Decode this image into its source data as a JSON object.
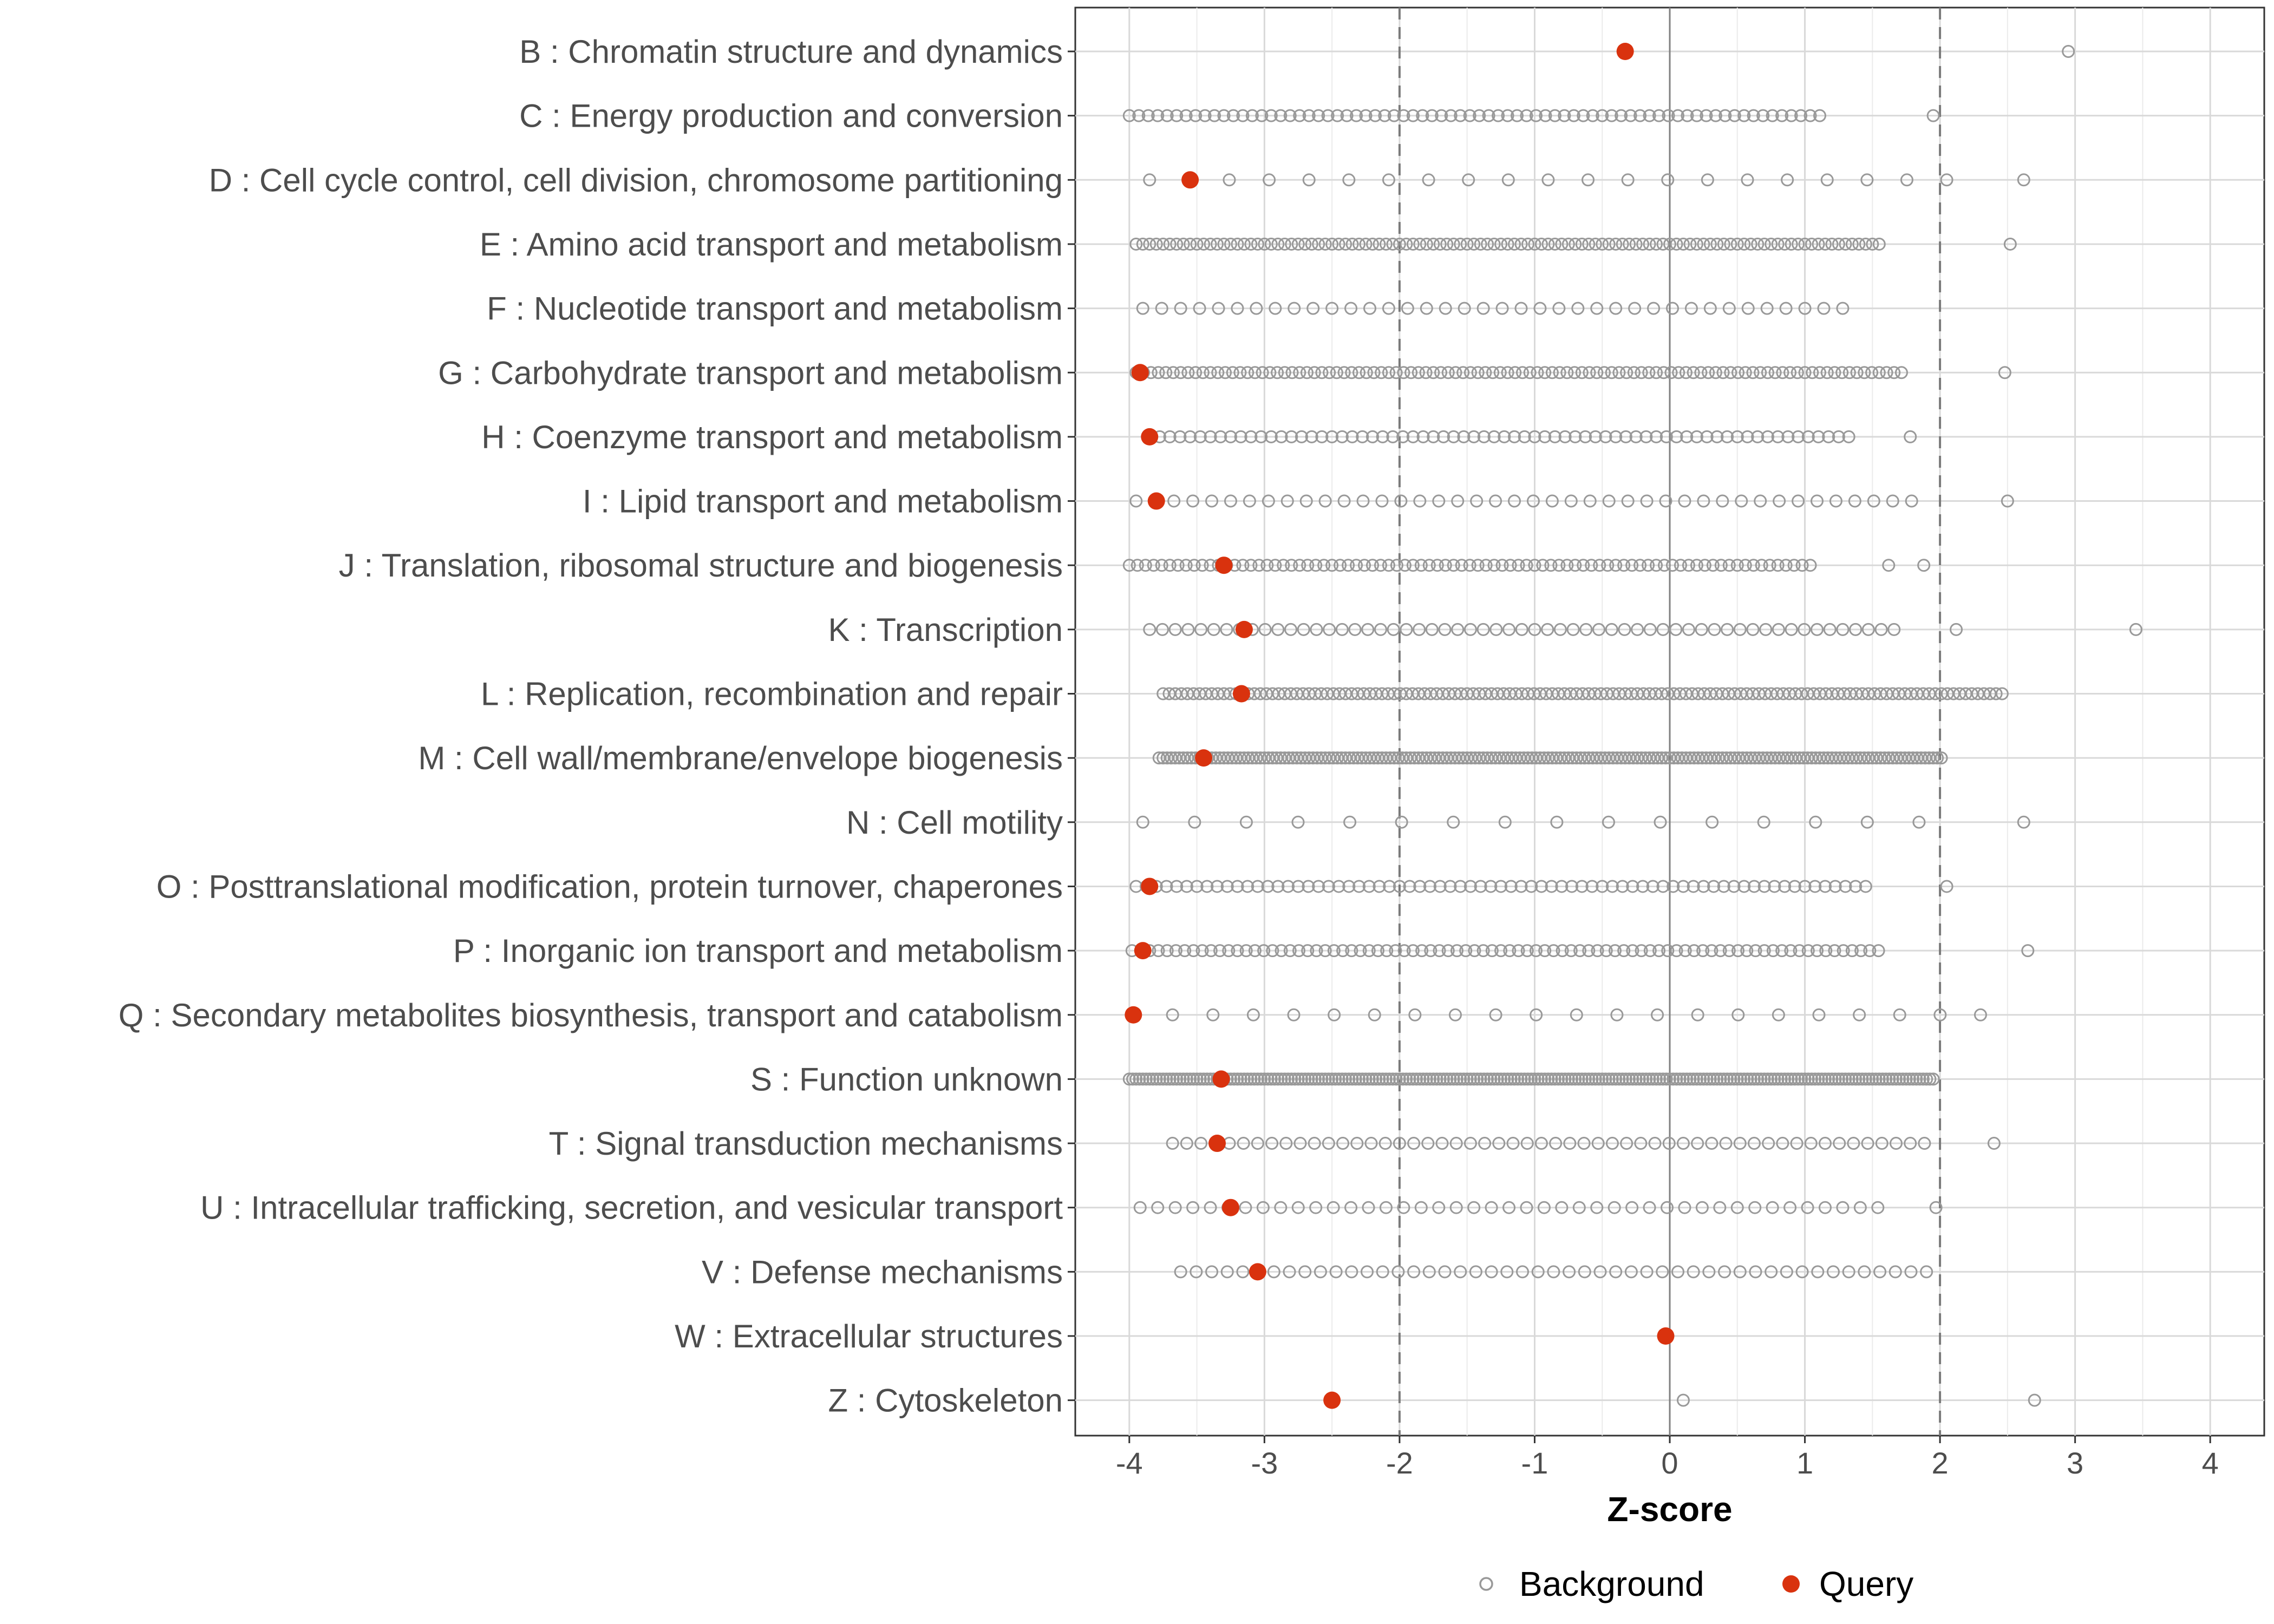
{
  "chart_data": {
    "type": "scatter",
    "title": "",
    "xlabel": "Z-score",
    "ylabel": "",
    "xlim": [
      -4.4,
      4.4
    ],
    "x_ticks": [
      "-4",
      "-3",
      "-2",
      "-1",
      "0",
      "1",
      "2",
      "3",
      "4"
    ],
    "x_tick_values": [
      -4,
      -3,
      -2,
      -1,
      0,
      1,
      2,
      3,
      4
    ],
    "reference_lines": {
      "solid": [
        0
      ],
      "dashed": [
        -2,
        2
      ]
    },
    "grid": true,
    "legend_position": "bottom",
    "legend": [
      {
        "name": "Background",
        "marker": "open-circle",
        "color": "#999999"
      },
      {
        "name": "Query",
        "marker": "filled-circle",
        "color": "#d9320e"
      }
    ],
    "categories": [
      {
        "label": "B : Chromatin structure and dynamics",
        "background_range": null,
        "background_step": null,
        "background_extra": [
          2.95
        ],
        "query": -0.33
      },
      {
        "label": "C : Energy production and conversion",
        "background_range": [
          -4.0,
          1.15
        ],
        "background_step": 0.07,
        "background_extra": [
          1.95
        ],
        "query": null
      },
      {
        "label": "D : Cell cycle control, cell division, chromosome partitioning",
        "background_range": [
          -3.85,
          2.05
        ],
        "background_step": 0.295,
        "background_extra": [
          2.62
        ],
        "query": -3.55
      },
      {
        "label": "E : Amino acid transport and metabolism",
        "background_range": [
          -3.95,
          1.55
        ],
        "background_step": 0.05,
        "background_extra": [
          2.52
        ],
        "query": null
      },
      {
        "label": "F : Nucleotide transport and metabolism",
        "background_range": [
          -3.9,
          1.35
        ],
        "background_step": 0.14,
        "background_extra": [],
        "query": null
      },
      {
        "label": "G : Carbohydrate transport and metabolism",
        "background_range": [
          -3.95,
          1.72
        ],
        "background_step": 0.055,
        "background_extra": [
          2.48
        ],
        "query": -3.92
      },
      {
        "label": "H : Coenzyme transport and metabolism",
        "background_range": [
          -3.85,
          1.35
        ],
        "background_step": 0.075,
        "background_extra": [
          1.78
        ],
        "query": -3.85
      },
      {
        "label": "I : Lipid transport and metabolism",
        "background_range": [
          -3.95,
          1.82
        ],
        "background_step": 0.14,
        "background_extra": [
          2.5
        ],
        "query": -3.8
      },
      {
        "label": "J : Translation, ribosomal structure and biogenesis",
        "background_range": [
          -4.0,
          1.08
        ],
        "background_step": 0.06,
        "background_extra": [
          1.62,
          1.88
        ],
        "query": -3.3
      },
      {
        "label": "K : Transcription",
        "background_range": [
          -3.85,
          1.75
        ],
        "background_step": 0.095,
        "background_extra": [
          2.12,
          3.45
        ],
        "query": -3.15
      },
      {
        "label": "L : Replication, recombination and repair",
        "background_range": [
          -3.75,
          2.5
        ],
        "background_step": 0.045,
        "background_extra": [],
        "query": -3.17
      },
      {
        "label": "M : Cell wall/membrane/envelope biogenesis",
        "background_range": [
          -3.78,
          2.02
        ],
        "background_step": 0.03,
        "background_extra": [],
        "query": -3.45
      },
      {
        "label": "N : Cell motility",
        "background_range": [
          -3.9,
          1.85
        ],
        "background_step": 0.383,
        "background_extra": [
          2.62
        ],
        "query": null
      },
      {
        "label": "O : Posttranslational modification, protein turnover, chaperones",
        "background_range": [
          -3.95,
          1.52
        ],
        "background_step": 0.075,
        "background_extra": [
          2.05
        ],
        "query": -3.85
      },
      {
        "label": "P : Inorganic ion transport and metabolism",
        "background_range": [
          -3.98,
          1.6
        ],
        "background_step": 0.065,
        "background_extra": [
          2.65
        ],
        "query": -3.9
      },
      {
        "label": "Q : Secondary metabolites biosynthesis, transport and catabolism",
        "background_range": [
          -3.68,
          2.3
        ],
        "background_step": 0.299,
        "background_extra": [],
        "query": -3.97
      },
      {
        "label": "S : Function unknown",
        "background_range": [
          -4.0,
          1.95
        ],
        "background_step": 0.025,
        "background_extra": [],
        "query": -3.32
      },
      {
        "label": "T : Signal transduction mechanisms",
        "background_range": [
          -3.68,
          1.95
        ],
        "background_step": 0.105,
        "background_extra": [
          2.4
        ],
        "query": -3.35
      },
      {
        "label": "U : Intracellular trafficking, secretion, and vesicular transport",
        "background_range": [
          -3.92,
          1.65
        ],
        "background_step": 0.13,
        "background_extra": [
          1.97
        ],
        "query": -3.25
      },
      {
        "label": "V : Defense mechanisms",
        "background_range": [
          -3.62,
          1.97
        ],
        "background_step": 0.115,
        "background_extra": [],
        "query": -3.05
      },
      {
        "label": "W : Extracellular structures",
        "background_range": null,
        "background_step": null,
        "background_extra": [
          -0.03
        ],
        "query": -0.03
      },
      {
        "label": "Z : Cytoskeleton",
        "background_range": null,
        "background_step": null,
        "background_extra": [
          0.1,
          2.7
        ],
        "query": -2.5
      }
    ]
  }
}
